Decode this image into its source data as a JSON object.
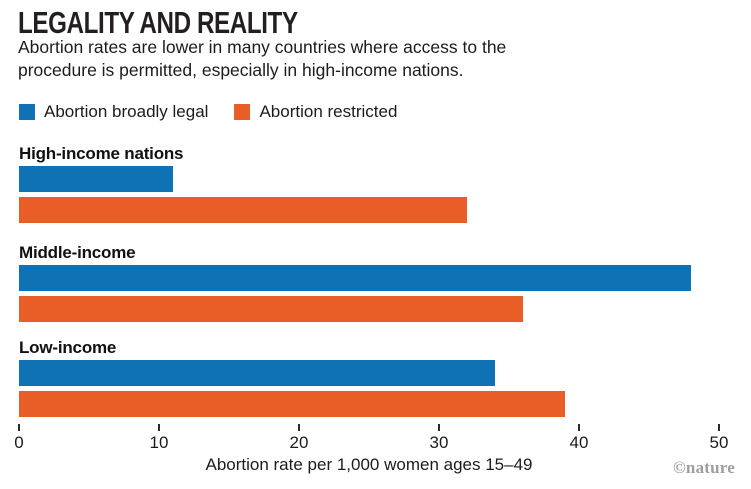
{
  "header": {
    "title": "LEGALITY AND REALITY",
    "subtitle_line1": "Abortion rates are lower in many countries where access to the",
    "subtitle_line2": "procedure is permitted, especially in high-income nations."
  },
  "legend": [
    {
      "label": "Abortion broadly legal",
      "color": "#0e72b4"
    },
    {
      "label": "Abortion restricted",
      "color": "#e95e26"
    }
  ],
  "chart_data": {
    "type": "bar",
    "orientation": "horizontal",
    "categories": [
      "High-income nations",
      "Middle-income",
      "Low-income"
    ],
    "series": [
      {
        "name": "Abortion broadly legal",
        "color": "#0e72b4",
        "values": [
          11,
          48,
          34
        ]
      },
      {
        "name": "Abortion restricted",
        "color": "#e95e26",
        "values": [
          32,
          36,
          39
        ]
      }
    ],
    "xlabel": "Abortion rate per 1,000 women ages 15–49",
    "xlim": [
      0,
      50
    ],
    "xticks": [
      0,
      10,
      20,
      30,
      40,
      50
    ],
    "grid": false,
    "legend_position": "top"
  },
  "footer": {
    "credit": "©nature"
  }
}
